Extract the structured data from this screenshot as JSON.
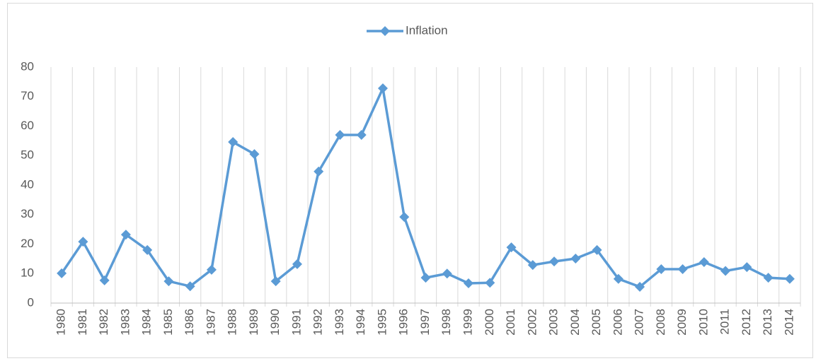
{
  "chart_data": {
    "type": "line",
    "categories": [
      "1980",
      "1981",
      "1982",
      "1983",
      "1984",
      "1985",
      "1986",
      "1987",
      "1988",
      "1989",
      "1990",
      "1991",
      "1992",
      "1993",
      "1994",
      "1995",
      "1996",
      "1997",
      "1998",
      "1999",
      "2000",
      "2001",
      "2002",
      "2003",
      "2004",
      "2005",
      "2006",
      "2007",
      "2008",
      "2009",
      "2010",
      "2011",
      "2012",
      "2013",
      "2014"
    ],
    "series": [
      {
        "name": "Inflation",
        "color": "#5b9bd5",
        "values": [
          10.1,
          20.8,
          7.7,
          23.2,
          18,
          7.4,
          5.7,
          11.3,
          54.6,
          50.5,
          7.4,
          13.2,
          44.6,
          57,
          57,
          72.8,
          29.2,
          8.6,
          10,
          6.7,
          6.9,
          18.9,
          12.9,
          14.1,
          15.1,
          18,
          8.2,
          5.5,
          11.5,
          11.5,
          13.9,
          10.9,
          12.2,
          8.6,
          8.2
        ]
      }
    ],
    "ylim": [
      0,
      80
    ],
    "yticks": [
      0,
      10,
      20,
      30,
      40,
      50,
      60,
      70,
      80
    ],
    "grid": true,
    "legend": "top"
  }
}
